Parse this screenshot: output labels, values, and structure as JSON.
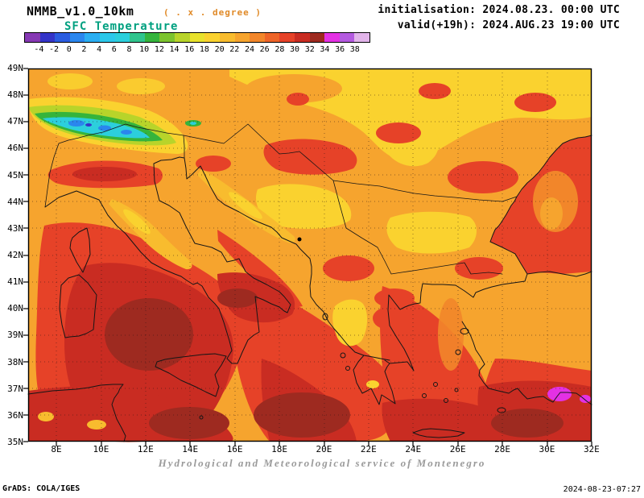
{
  "header": {
    "model": "NMMB_v1.0_10km",
    "resolution": "( . x . degree )",
    "field": "SFC Temperature",
    "init_line": "initialisation: 2024.08.23. 00:00 UTC",
    "valid_line": "valid(+19h): 2024.AUG.23 19:00 UTC"
  },
  "legend": {
    "labels": [
      "-4",
      "-2",
      "0",
      "2",
      "4",
      "6",
      "8",
      "10",
      "12",
      "14",
      "16",
      "18",
      "20",
      "22",
      "24",
      "26",
      "28",
      "30",
      "32",
      "34",
      "36",
      "38"
    ],
    "colors": [
      "#8638b4",
      "#3434c8",
      "#2b5ce0",
      "#2a86ee",
      "#2aaef2",
      "#2cc8ea",
      "#2ccfdc",
      "#30c48c",
      "#35b43c",
      "#7cc42e",
      "#b8d42a",
      "#e8e22c",
      "#fad22f",
      "#f8bc2e",
      "#f6a42e",
      "#f2862a",
      "#ee6428",
      "#e64228",
      "#c92c22",
      "#9e2a20",
      "#e431e4",
      "#b45ae0",
      "#e2b4ea"
    ]
  },
  "map": {
    "lat_labels": [
      "49N",
      "48N",
      "47N",
      "46N",
      "45N",
      "44N",
      "43N",
      "42N",
      "41N",
      "40N",
      "39N",
      "38N",
      "37N",
      "36N",
      "35N"
    ],
    "lon_labels": [
      "8E",
      "10E",
      "12E",
      "14E",
      "16E",
      "18E",
      "20E",
      "22E",
      "24E",
      "26E",
      "28E",
      "30E",
      "32E"
    ]
  },
  "footer": {
    "service": "Hydrological and Meteorological service of Montenegro",
    "grads": "GrADS: COLA/IGES",
    "timestamp": "2024-08-23-07:27"
  }
}
